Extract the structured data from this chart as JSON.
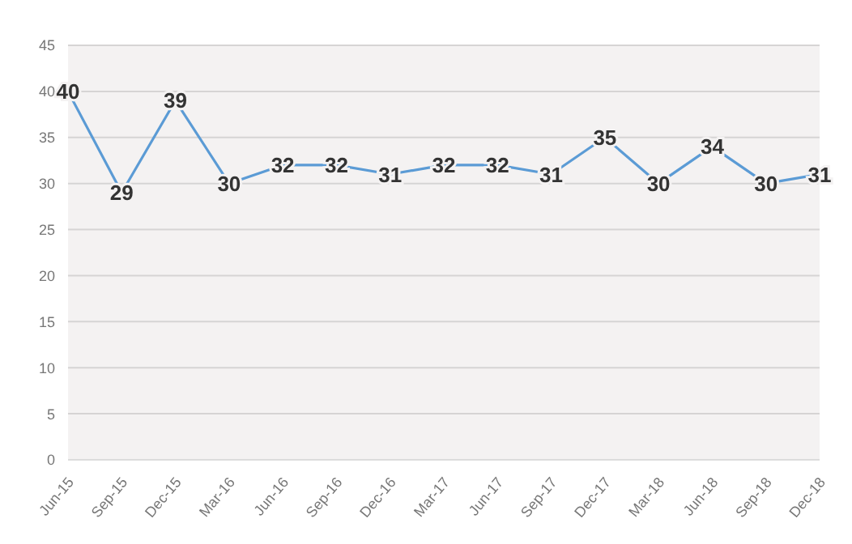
{
  "chart_data": {
    "type": "line",
    "categories": [
      "Jun-15",
      "Sep-15",
      "Dec-15",
      "Mar-16",
      "Jun-16",
      "Sep-16",
      "Dec-16",
      "Mar-17",
      "Jun-17",
      "Sep-17",
      "Dec-17",
      "Mar-18",
      "Jun-18",
      "Sep-18",
      "Dec-18"
    ],
    "series": [
      {
        "color": "#5b9bd5",
        "values": [
          40,
          29,
          39,
          30,
          32,
          32,
          31,
          32,
          32,
          31,
          35,
          30,
          34,
          30,
          31
        ]
      }
    ],
    "ylim": [
      0,
      45
    ],
    "yticks": [
      0,
      5,
      10,
      15,
      20,
      25,
      30,
      35,
      40,
      45
    ],
    "grid": "y",
    "data_labels": true,
    "legend": false,
    "marker": "none"
  }
}
